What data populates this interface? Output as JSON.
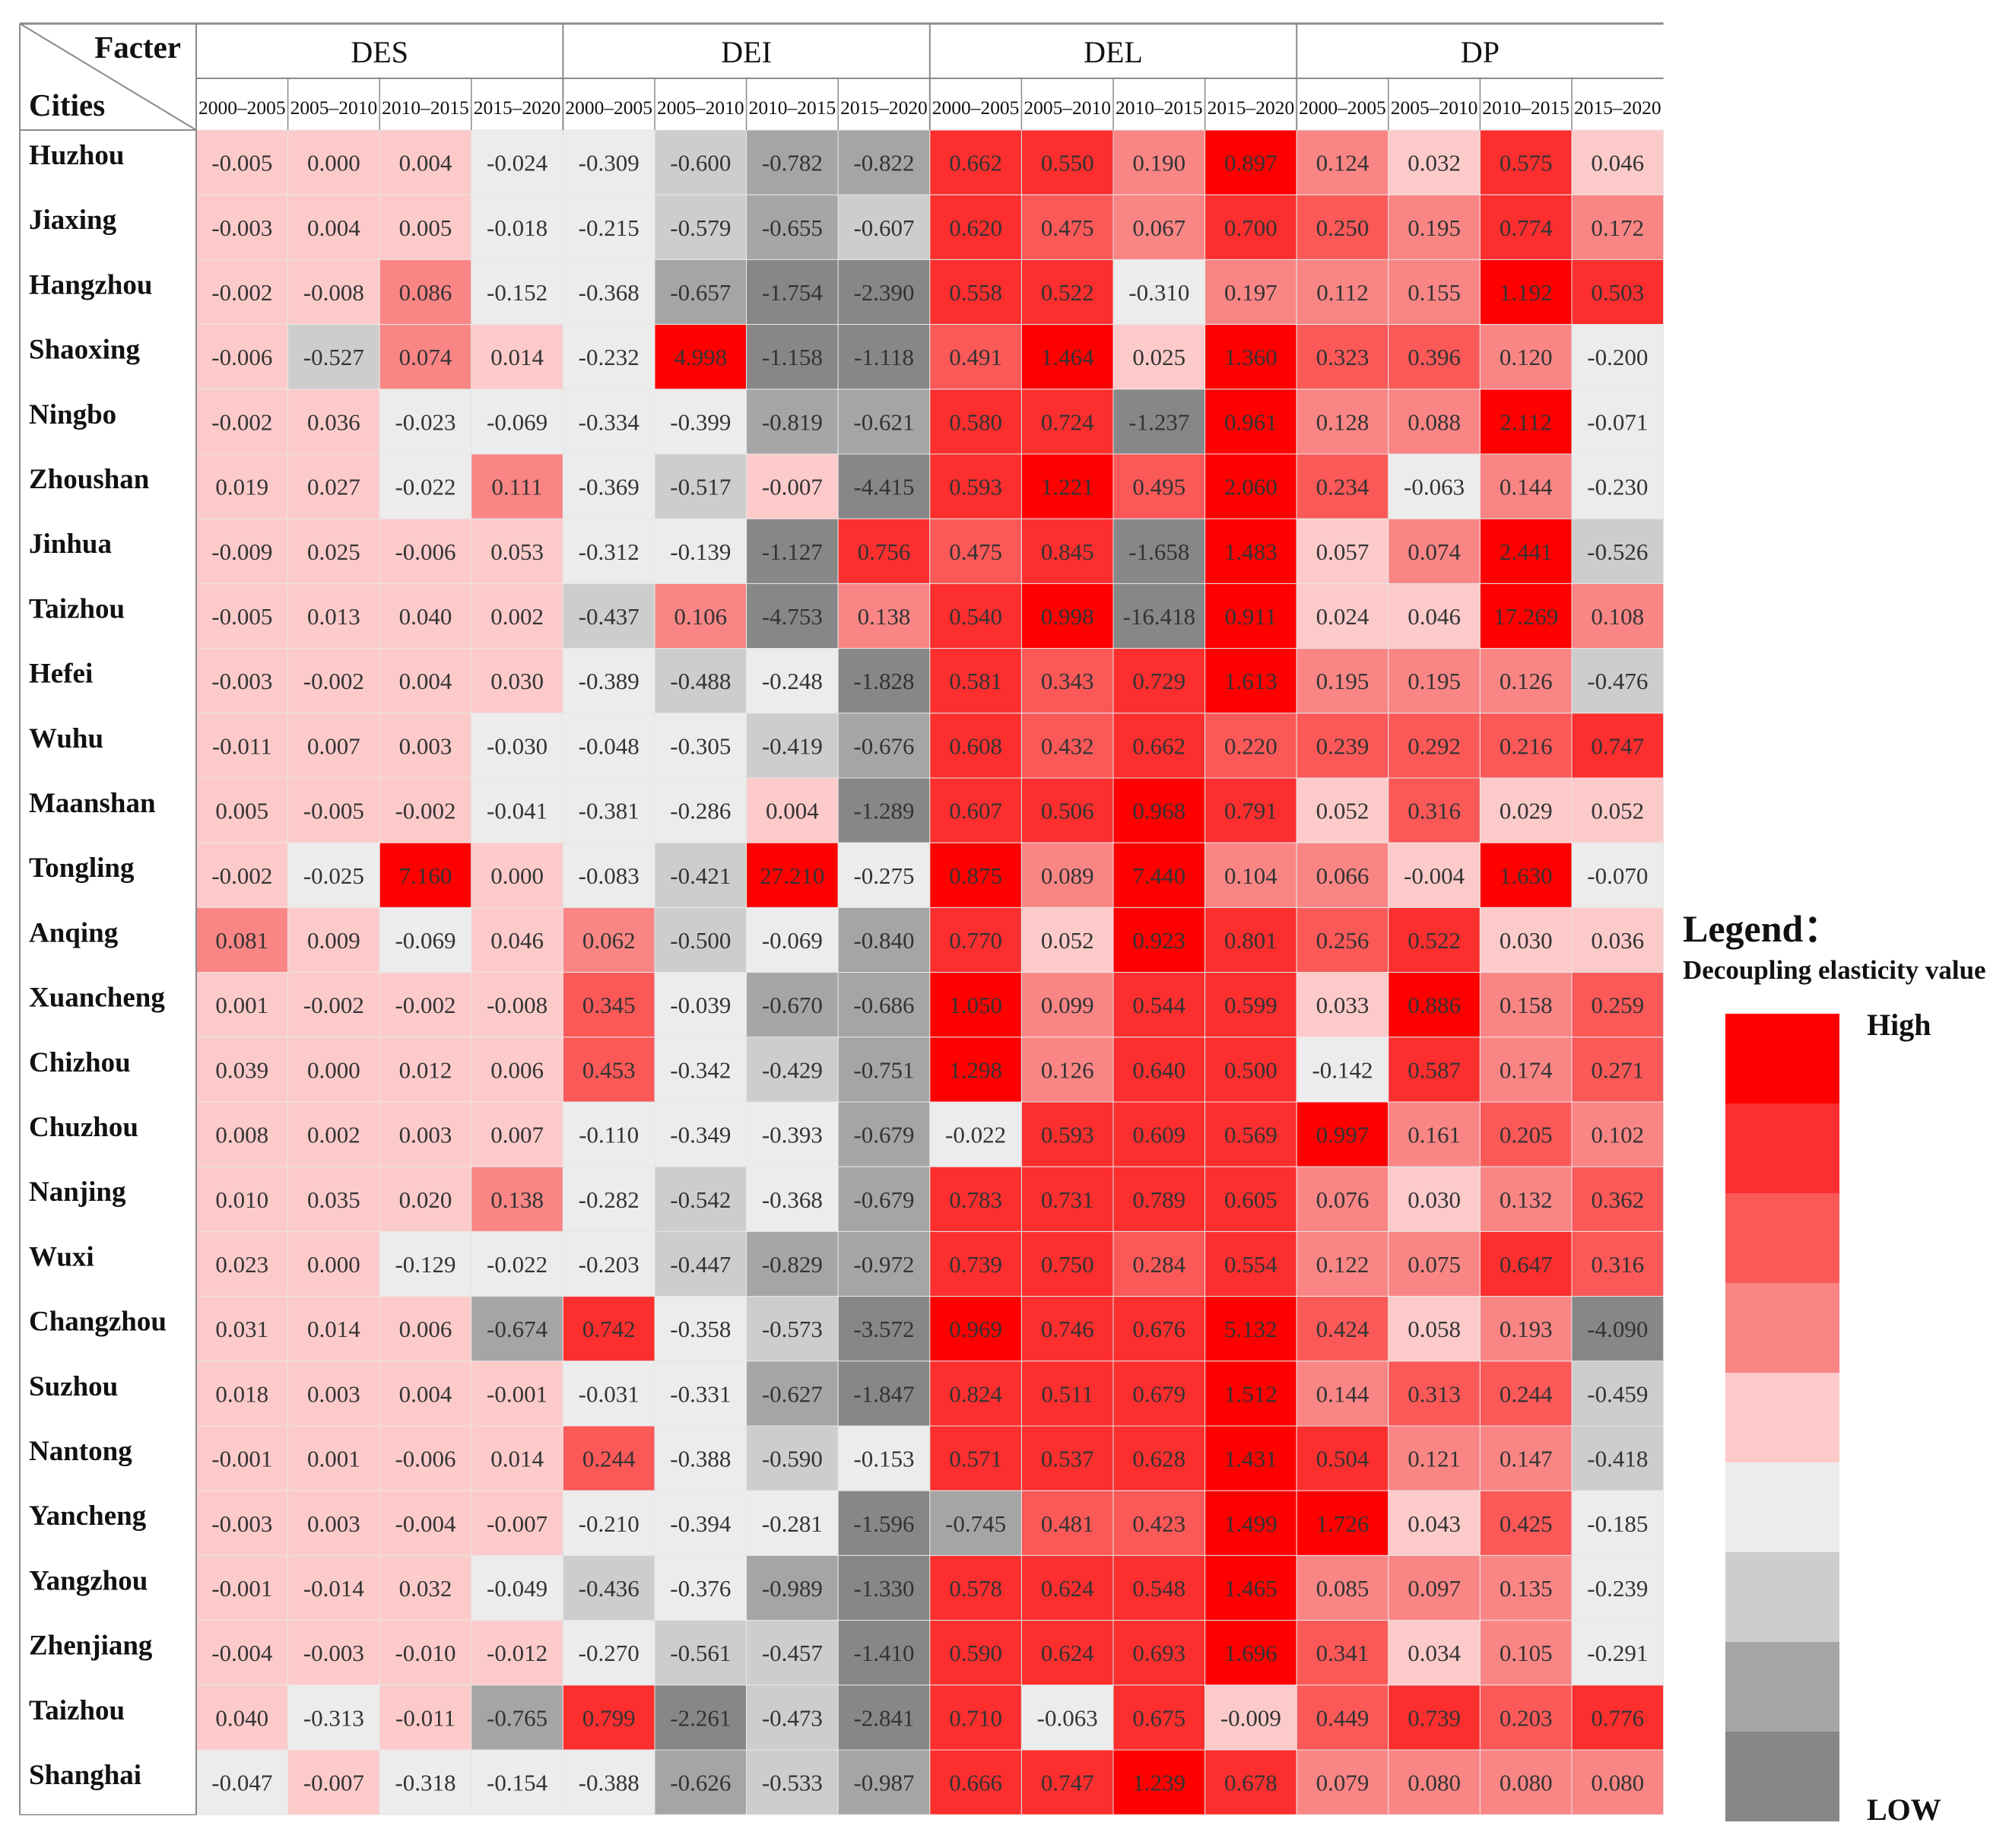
{
  "chart_data": {
    "type": "heatmap",
    "corner": {
      "column_header": "Facter",
      "row_header": "Cities"
    },
    "groups": [
      "DES",
      "DEI",
      "DEL",
      "DP"
    ],
    "periods": [
      "2000–2005",
      "2005–2010",
      "2010–2015",
      "2015–2020"
    ],
    "rows": [
      {
        "city": "Huzhou",
        "values": [
          -0.005,
          0.0,
          0.004,
          -0.024,
          -0.309,
          -0.6,
          -0.782,
          -0.822,
          0.662,
          0.55,
          0.19,
          0.897,
          0.124,
          0.032,
          0.575,
          0.046
        ]
      },
      {
        "city": "Jiaxing",
        "values": [
          -0.003,
          0.004,
          0.005,
          -0.018,
          -0.215,
          -0.579,
          -0.655,
          -0.607,
          0.62,
          0.475,
          0.067,
          0.7,
          0.25,
          0.195,
          0.774,
          0.172
        ]
      },
      {
        "city": "Hangzhou",
        "values": [
          -0.002,
          -0.008,
          0.086,
          -0.152,
          -0.368,
          -0.657,
          -1.754,
          -2.39,
          0.558,
          0.522,
          -0.31,
          0.197,
          0.112,
          0.155,
          1.192,
          0.503
        ]
      },
      {
        "city": "Shaoxing",
        "values": [
          -0.006,
          -0.527,
          0.074,
          0.014,
          -0.232,
          4.998,
          -1.158,
          -1.118,
          0.491,
          1.464,
          0.025,
          1.36,
          0.323,
          0.396,
          0.12,
          -0.2
        ]
      },
      {
        "city": "Ningbo",
        "values": [
          -0.002,
          0.036,
          -0.023,
          -0.069,
          -0.334,
          -0.399,
          -0.819,
          -0.621,
          0.58,
          0.724,
          -1.237,
          0.961,
          0.128,
          0.088,
          2.112,
          -0.071
        ]
      },
      {
        "city": "Zhoushan",
        "values": [
          0.019,
          0.027,
          -0.022,
          0.111,
          -0.369,
          -0.517,
          -0.007,
          -4.415,
          0.593,
          1.221,
          0.495,
          2.06,
          0.234,
          -0.063,
          0.144,
          -0.23
        ]
      },
      {
        "city": "Jinhua",
        "values": [
          -0.009,
          0.025,
          -0.006,
          0.053,
          -0.312,
          -0.139,
          -1.127,
          0.756,
          0.475,
          0.845,
          -1.658,
          1.483,
          0.057,
          0.074,
          2.441,
          -0.526
        ]
      },
      {
        "city": "Taizhou",
        "values": [
          -0.005,
          0.013,
          0.04,
          0.002,
          -0.437,
          0.106,
          -4.753,
          0.138,
          0.54,
          0.998,
          -16.418,
          0.911,
          0.024,
          0.046,
          17.269,
          0.108
        ]
      },
      {
        "city": "Hefei",
        "values": [
          -0.003,
          -0.002,
          0.004,
          0.03,
          -0.389,
          -0.488,
          -0.248,
          -1.828,
          0.581,
          0.343,
          0.729,
          1.613,
          0.195,
          0.195,
          0.126,
          -0.476
        ]
      },
      {
        "city": "Wuhu",
        "values": [
          -0.011,
          0.007,
          0.003,
          -0.03,
          -0.048,
          -0.305,
          -0.419,
          -0.676,
          0.608,
          0.432,
          0.662,
          0.22,
          0.239,
          0.292,
          0.216,
          0.747
        ]
      },
      {
        "city": "Maanshan",
        "values": [
          0.005,
          -0.005,
          -0.002,
          -0.041,
          -0.381,
          -0.286,
          0.004,
          -1.289,
          0.607,
          0.506,
          0.968,
          0.791,
          0.052,
          0.316,
          0.029,
          0.052
        ]
      },
      {
        "city": "Tongling",
        "values": [
          -0.002,
          -0.025,
          7.16,
          0.0,
          -0.083,
          -0.421,
          27.21,
          -0.275,
          0.875,
          0.089,
          7.44,
          0.104,
          0.066,
          -0.004,
          1.63,
          -0.07
        ]
      },
      {
        "city": "Anqing",
        "values": [
          0.081,
          0.009,
          -0.069,
          0.046,
          0.062,
          -0.5,
          -0.069,
          -0.84,
          0.77,
          0.052,
          0.923,
          0.801,
          0.256,
          0.522,
          0.03,
          0.036
        ]
      },
      {
        "city": "Xuancheng",
        "values": [
          0.001,
          -0.002,
          -0.002,
          -0.008,
          0.345,
          -0.039,
          -0.67,
          -0.686,
          1.05,
          0.099,
          0.544,
          0.599,
          0.033,
          0.886,
          0.158,
          0.259
        ]
      },
      {
        "city": "Chizhou",
        "values": [
          0.039,
          0.0,
          0.012,
          0.006,
          0.453,
          -0.342,
          -0.429,
          -0.751,
          1.298,
          0.126,
          0.64,
          0.5,
          -0.142,
          0.587,
          0.174,
          0.271
        ]
      },
      {
        "city": "Chuzhou",
        "values": [
          0.008,
          0.002,
          0.003,
          0.007,
          -0.11,
          -0.349,
          -0.393,
          -0.679,
          -0.022,
          0.593,
          0.609,
          0.569,
          0.997,
          0.161,
          0.205,
          0.102
        ]
      },
      {
        "city": "Nanjing",
        "values": [
          0.01,
          0.035,
          0.02,
          0.138,
          -0.282,
          -0.542,
          -0.368,
          -0.679,
          0.783,
          0.731,
          0.789,
          0.605,
          0.076,
          0.03,
          0.132,
          0.362
        ]
      },
      {
        "city": "Wuxi",
        "values": [
          0.023,
          0.0,
          -0.129,
          -0.022,
          -0.203,
          -0.447,
          -0.829,
          -0.972,
          0.739,
          0.75,
          0.284,
          0.554,
          0.122,
          0.075,
          0.647,
          0.316
        ]
      },
      {
        "city": "Changzhou",
        "values": [
          0.031,
          0.014,
          0.006,
          -0.674,
          0.742,
          -0.358,
          -0.573,
          -3.572,
          0.969,
          0.746,
          0.676,
          5.132,
          0.424,
          0.058,
          0.193,
          -4.09
        ]
      },
      {
        "city": "Suzhou",
        "values": [
          0.018,
          0.003,
          0.004,
          -0.001,
          -0.031,
          -0.331,
          -0.627,
          -1.847,
          0.824,
          0.511,
          0.679,
          1.512,
          0.144,
          0.313,
          0.244,
          -0.459
        ]
      },
      {
        "city": "Nantong",
        "values": [
          -0.001,
          0.001,
          -0.006,
          0.014,
          0.244,
          -0.388,
          -0.59,
          -0.153,
          0.571,
          0.537,
          0.628,
          1.431,
          0.504,
          0.121,
          0.147,
          -0.418
        ]
      },
      {
        "city": "Yancheng",
        "values": [
          -0.003,
          0.003,
          -0.004,
          -0.007,
          -0.21,
          -0.394,
          -0.281,
          -1.596,
          -0.745,
          0.481,
          0.423,
          1.499,
          1.726,
          0.043,
          0.425,
          -0.185
        ]
      },
      {
        "city": "Yangzhou",
        "values": [
          -0.001,
          -0.014,
          0.032,
          -0.049,
          -0.436,
          -0.376,
          -0.989,
          -1.33,
          0.578,
          0.624,
          0.548,
          1.465,
          0.085,
          0.097,
          0.135,
          -0.239
        ]
      },
      {
        "city": "Zhenjiang",
        "values": [
          -0.004,
          -0.003,
          -0.01,
          -0.012,
          -0.27,
          -0.561,
          -0.457,
          -1.41,
          0.59,
          0.624,
          0.693,
          1.696,
          0.341,
          0.034,
          0.105,
          -0.291
        ]
      },
      {
        "city": "Taizhou",
        "values": [
          0.04,
          -0.313,
          -0.011,
          -0.765,
          0.799,
          -2.261,
          -0.473,
          -2.841,
          0.71,
          -0.063,
          0.675,
          -0.009,
          0.449,
          0.739,
          0.203,
          0.776
        ]
      },
      {
        "city": "Shanghai",
        "values": [
          -0.047,
          -0.007,
          -0.318,
          -0.154,
          -0.388,
          -0.626,
          -0.533,
          -0.987,
          0.666,
          0.747,
          1.239,
          0.678,
          0.079,
          0.08,
          0.08,
          0.08
        ]
      }
    ],
    "value_format": "3 decimals",
    "color_scale": {
      "title": "Legend：",
      "subtitle": "Decoupling elasticity value",
      "high_label": "High",
      "low_label": "LOW",
      "steps_high_to_low": [
        "#ff0000",
        "#fd2e2e",
        "#fb5858",
        "#fa8585",
        "#fdcaca",
        "#ececec",
        "#cdcdcd",
        "#a5a5a5",
        "#878787"
      ],
      "thresholds_high_to_low": [
        0.85,
        0.5,
        0.2,
        0.06,
        -0.015,
        -0.4,
        -0.62,
        -1.0
      ]
    }
  }
}
